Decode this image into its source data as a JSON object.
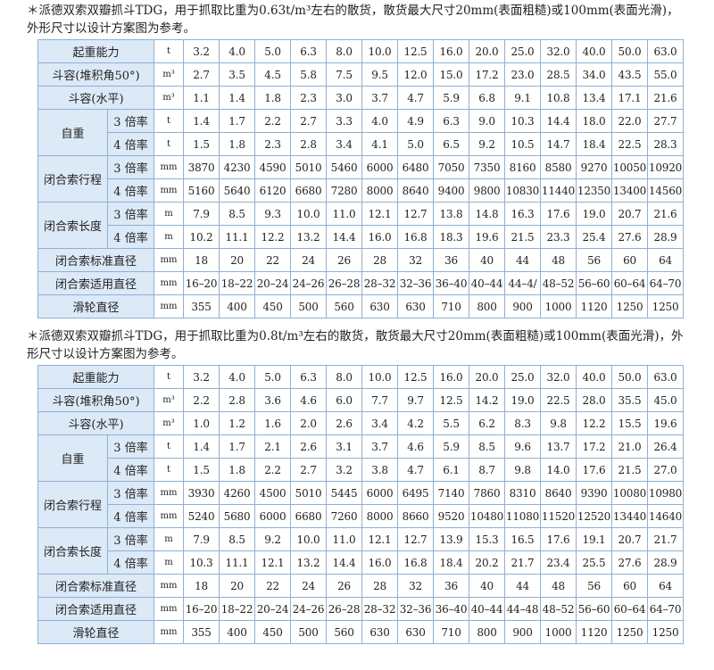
{
  "tables": [
    {
      "note": "＊派德双索双瓣抓斗TDG，用于抓取比重为0.63t/m³左右的散货，散货最大尺寸20mm(表面粗糙)或100mm(表面光滑)，外形尺寸以设计方案图为参考。",
      "groups": [
        {
          "label": "起重能力",
          "rows": [
            {
              "unit": "t",
              "values": [
                "3.2",
                "4.0",
                "5.0",
                "6.3",
                "8.0",
                "10.0",
                "12.5",
                "16.0",
                "20.0",
                "25.0",
                "32.0",
                "40.0",
                "50.0",
                "63.0"
              ]
            }
          ]
        },
        {
          "label": "斗容(堆积角50°)",
          "rows": [
            {
              "unit": "m³",
              "values": [
                "2.7",
                "3.5",
                "4.5",
                "5.8",
                "7.5",
                "9.5",
                "12.0",
                "15.0",
                "17.2",
                "23.0",
                "28.5",
                "34.0",
                "43.5",
                "55.0"
              ]
            }
          ]
        },
        {
          "label": "斗容(水平)",
          "rows": [
            {
              "unit": "m³",
              "values": [
                "1.1",
                "1.4",
                "1.8",
                "2.3",
                "3.0",
                "3.7",
                "4.7",
                "5.9",
                "6.8",
                "9.1",
                "10.8",
                "13.4",
                "17.1",
                "21.6"
              ]
            }
          ]
        },
        {
          "label": "自重",
          "rows": [
            {
              "sub": "3 倍率",
              "unit": "t",
              "values": [
                "1.4",
                "1.7",
                "2.2",
                "2.7",
                "3.3",
                "4.0",
                "4.9",
                "6.3",
                "9.0",
                "10.3",
                "14.4",
                "18.0",
                "22.0",
                "27.7"
              ]
            },
            {
              "sub": "4 倍率",
              "unit": "t",
              "values": [
                "1.5",
                "1.8",
                "2.3",
                "2.8",
                "3.4",
                "4.1",
                "5.0",
                "6.5",
                "9.2",
                "10.5",
                "14.7",
                "18.4",
                "22.5",
                "28.3"
              ]
            }
          ]
        },
        {
          "label": "闭合索行程",
          "rows": [
            {
              "sub": "3 倍率",
              "unit": "mm",
              "values": [
                "3870",
                "4230",
                "4590",
                "5010",
                "5460",
                "6000",
                "6480",
                "7050",
                "7350",
                "8160",
                "8580",
                "9270",
                "10050",
                "10920"
              ]
            },
            {
              "sub": "4 倍率",
              "unit": "mm",
              "values": [
                "5160",
                "5640",
                "6120",
                "6680",
                "7280",
                "8000",
                "8640",
                "9400",
                "9800",
                "10830",
                "11440",
                "12350",
                "13400",
                "14560"
              ]
            }
          ]
        },
        {
          "label": "闭合索长度",
          "rows": [
            {
              "sub": "3 倍率",
              "unit": "m",
              "values": [
                "7.9",
                "8.5",
                "9.3",
                "10.0",
                "11.0",
                "12.1",
                "12.7",
                "13.8",
                "14.8",
                "16.3",
                "17.6",
                "19.0",
                "20.7",
                "21.6"
              ]
            },
            {
              "sub": "4 倍率",
              "unit": "m",
              "values": [
                "10.2",
                "11.1",
                "12.2",
                "13.2",
                "14.4",
                "16.0",
                "16.8",
                "18.3",
                "19.6",
                "21.5",
                "23.3",
                "25.4",
                "27.6",
                "28.9"
              ]
            }
          ]
        },
        {
          "label": "闭合索标准直径",
          "rows": [
            {
              "unit": "mm",
              "values": [
                "18",
                "20",
                "22",
                "24",
                "26",
                "28",
                "32",
                "36",
                "40",
                "44",
                "48",
                "56",
                "60",
                "64"
              ]
            }
          ]
        },
        {
          "label": "闭合索适用直径",
          "rows": [
            {
              "unit": "mm",
              "values": [
                "16–20",
                "18–22",
                "20–24",
                "24–26",
                "26–28",
                "28–32",
                "32–36",
                "36–40",
                "40–44",
                "44–4/",
                "48–52",
                "56–60",
                "60–64",
                "64–70"
              ]
            }
          ]
        },
        {
          "label": "滑轮直径",
          "rows": [
            {
              "unit": "mm",
              "values": [
                "355",
                "400",
                "450",
                "500",
                "560",
                "630",
                "630",
                "710",
                "800",
                "900",
                "1000",
                "1120",
                "1250",
                "1250"
              ]
            }
          ]
        }
      ]
    },
    {
      "note": "＊派德双索双瓣抓斗TDG，用于抓取比重为0.8t/m³左右的散货，散货最大尺寸20mm(表面粗糙)或100mm(表面光滑)，外形尺寸以设计方案图为参考。",
      "groups": [
        {
          "label": "起重能力",
          "rows": [
            {
              "unit": "t",
              "values": [
                "3.2",
                "4.0",
                "5.0",
                "6.3",
                "8.0",
                "10.0",
                "12.5",
                "16.0",
                "20.0",
                "25.0",
                "32.0",
                "40.0",
                "50.0",
                "63.0"
              ]
            }
          ]
        },
        {
          "label": "斗容(堆积角50°)",
          "rows": [
            {
              "unit": "m³",
              "values": [
                "2.2",
                "2.8",
                "3.6",
                "4.6",
                "6.0",
                "7.7",
                "9.7",
                "12.5",
                "14.2",
                "19.0",
                "22.5",
                "28.0",
                "35.5",
                "45.0"
              ]
            }
          ]
        },
        {
          "label": "斗容(水平)",
          "rows": [
            {
              "unit": "m³",
              "values": [
                "1.0",
                "1.2",
                "1.6",
                "2.0",
                "2.6",
                "3.4",
                "4.2",
                "5.5",
                "6.2",
                "8.3",
                "9.8",
                "12.2",
                "15.5",
                "19.6"
              ]
            }
          ]
        },
        {
          "label": "自重",
          "rows": [
            {
              "sub": "3 倍率",
              "unit": "t",
              "values": [
                "1.4",
                "1.7",
                "2.1",
                "2.6",
                "3.1",
                "3.7",
                "4.6",
                "5.9",
                "8.5",
                "9.6",
                "13.7",
                "17.2",
                "21.0",
                "26.4"
              ]
            },
            {
              "sub": "4 倍率",
              "unit": "t",
              "values": [
                "1.5",
                "1.8",
                "2.2",
                "2.7",
                "3.2",
                "3.8",
                "4.7",
                "6.1",
                "8.7",
                "9.8",
                "14.0",
                "17.6",
                "21.5",
                "27.0"
              ]
            }
          ]
        },
        {
          "label": "闭合索行程",
          "rows": [
            {
              "sub": "3 倍率",
              "unit": "mm",
              "values": [
                "3930",
                "4260",
                "4500",
                "5010",
                "5445",
                "6000",
                "6495",
                "7140",
                "7860",
                "8310",
                "8640",
                "9390",
                "10080",
                "10980"
              ]
            },
            {
              "sub": "4 倍率",
              "unit": "mm",
              "values": [
                "5240",
                "5680",
                "6000",
                "6680",
                "7260",
                "8000",
                "8660",
                "9520",
                "10480",
                "11080",
                "11520",
                "12520",
                "13440",
                "14640"
              ]
            }
          ]
        },
        {
          "label": "闭合索长度",
          "rows": [
            {
              "sub": "3 倍率",
              "unit": "m",
              "values": [
                "7.9",
                "8.5",
                "9.2",
                "10.0",
                "11.0",
                "12.1",
                "12.7",
                "13.9",
                "15.3",
                "16.5",
                "17.6",
                "19.1",
                "20.7",
                "21.7"
              ]
            },
            {
              "sub": "4 倍率",
              "unit": "m",
              "values": [
                "10.3",
                "11.1",
                "12.1",
                "13.2",
                "14.4",
                "16.0",
                "16.8",
                "18.4",
                "20.2",
                "21.7",
                "23.4",
                "25.5",
                "27.6",
                "28.9"
              ]
            }
          ]
        },
        {
          "label": "闭合索标准直径",
          "rows": [
            {
              "unit": "mm",
              "values": [
                "18",
                "20",
                "22",
                "24",
                "26",
                "28",
                "32",
                "36",
                "40",
                "44",
                "48",
                "56",
                "60",
                "64"
              ]
            }
          ]
        },
        {
          "label": "闭合索适用直径",
          "rows": [
            {
              "unit": "mm",
              "values": [
                "16–20",
                "18–22",
                "20–24",
                "24–26",
                "26–28",
                "28–32",
                "32–36",
                "36–40",
                "40–44",
                "44–48",
                "48–52",
                "56–60",
                "60–64",
                "64–70"
              ]
            }
          ]
        },
        {
          "label": "滑轮直径",
          "rows": [
            {
              "unit": "mm",
              "values": [
                "355",
                "400",
                "450",
                "500",
                "560",
                "630",
                "630",
                "710",
                "800",
                "900",
                "1000",
                "1120",
                "1250",
                "1250"
              ]
            }
          ]
        }
      ]
    }
  ]
}
